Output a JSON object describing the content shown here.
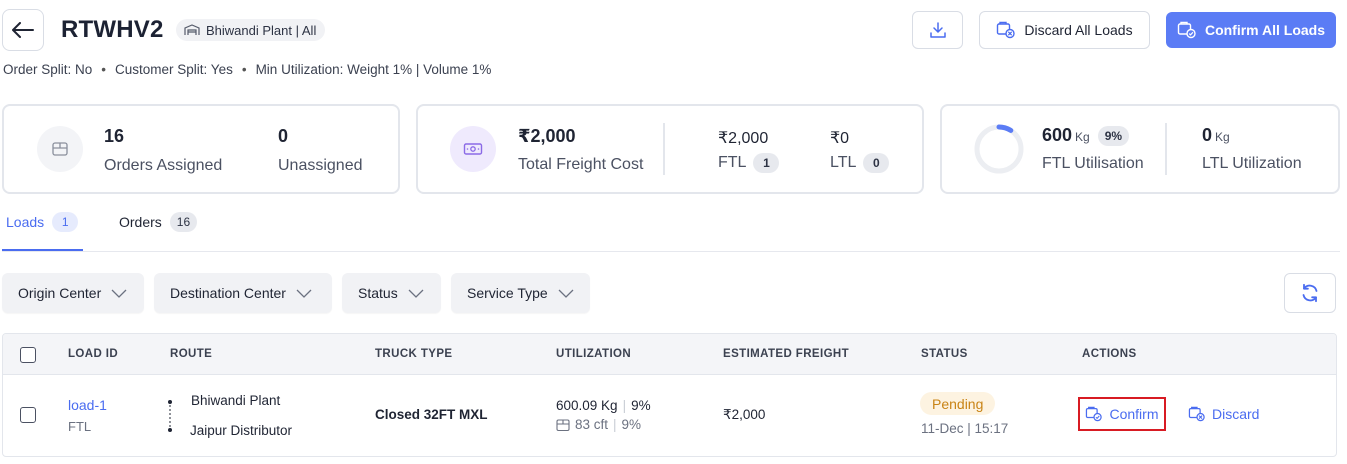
{
  "header": {
    "title": "RTWHV2",
    "plant_chip": "Bhiwandi Plant | All",
    "meta": {
      "order_split": "Order Split: No",
      "customer_split": "Customer Split: Yes",
      "min_utilization": "Min Utilization: Weight 1% | Volume 1%"
    },
    "discard_all_label": "Discard All Loads",
    "confirm_all_label": "Confirm All Loads"
  },
  "summary": {
    "orders_assigned_value": "16",
    "orders_assigned_label": "Orders Assigned",
    "unassigned_value": "0",
    "unassigned_label": "Unassigned",
    "total_freight_value": "₹2,000",
    "total_freight_label": "Total Freight Cost",
    "ftl_value": "₹2,000",
    "ftl_label": "FTL",
    "ftl_count": "1",
    "ltl_value": "₹0",
    "ltl_label": "LTL",
    "ltl_count": "0",
    "ftl_util_value": "600",
    "ftl_util_unit": "Kg",
    "ftl_util_percent": "9%",
    "ftl_util_label": "FTL Utilisation",
    "ftl_util_fraction": 0.09,
    "ltl_util_value": "0",
    "ltl_util_unit": "Kg",
    "ltl_util_label": "LTL Utilization"
  },
  "tabs": [
    {
      "label": "Loads",
      "count": "1",
      "active": true
    },
    {
      "label": "Orders",
      "count": "16",
      "active": false
    }
  ],
  "filters": [
    "Origin Center",
    "Destination Center",
    "Status",
    "Service Type"
  ],
  "table": {
    "columns": [
      "LOAD ID",
      "ROUTE",
      "TRUCK TYPE",
      "UTILIZATION",
      "ESTIMATED FREIGHT",
      "STATUS",
      "ACTIONS"
    ],
    "rows": [
      {
        "load_id": "load-1",
        "load_type": "FTL",
        "route_from": "Bhiwandi Plant",
        "route_to": "Jaipur Distributor",
        "truck_type": "Closed 32FT MXL",
        "weight": "600.09 Kg",
        "weight_pct": "9%",
        "volume": "83 cft",
        "volume_pct": "9%",
        "freight": "₹2,000",
        "status": "Pending",
        "status_time": "11-Dec | 15:17",
        "confirm_label": "Confirm",
        "discard_label": "Discard"
      }
    ]
  },
  "colors": {
    "primary": "#5b7cf5",
    "link": "#4a6cf0",
    "pending_text": "#c98416",
    "pending_bg": "#fdf3e1",
    "highlight_border": "#d81b23"
  }
}
